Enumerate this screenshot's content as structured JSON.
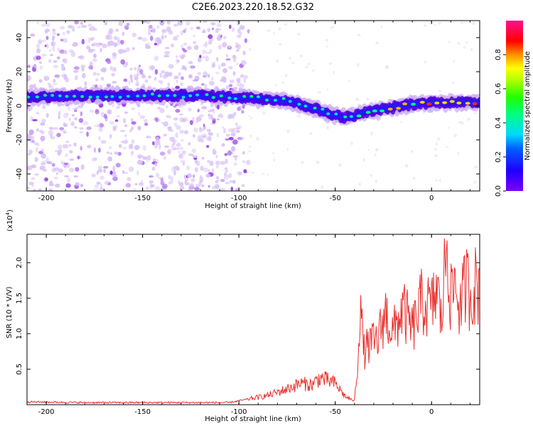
{
  "title": "C2E6.2023.220.18.52.G32",
  "chart_data": [
    {
      "type": "heatmap",
      "name": "spectrogram",
      "xlabel": "Height of straight line (km)",
      "ylabel": "Frequency (Hz)",
      "xlim": [
        -210,
        25
      ],
      "ylim": [
        -50,
        50
      ],
      "xticks": [
        -200,
        -150,
        -100,
        -50,
        0
      ],
      "xtick_labels": [
        "-200",
        "-150",
        "-100",
        "-50",
        "0"
      ],
      "yticks": [
        -40,
        -20,
        0,
        20,
        40
      ],
      "ytick_labels": [
        "-40",
        "-20",
        "0",
        "20",
        "40"
      ],
      "ridge": {
        "x": [
          -210,
          -180,
          -150,
          -120,
          -100,
          -85,
          -75,
          -65,
          -55,
          -45,
          -40,
          -35,
          -30,
          -20,
          -10,
          0,
          10,
          25
        ],
        "y": [
          5,
          6,
          6,
          6,
          5,
          4,
          3,
          0,
          -4,
          -7,
          -6,
          -4,
          -3,
          -1,
          1,
          2,
          2,
          2
        ]
      },
      "colorbar": {
        "label": "Normalized spectral amplitude",
        "range": [
          0,
          1
        ],
        "ticks": [
          0.0,
          0.2,
          0.4,
          0.6,
          0.8
        ],
        "tick_labels": [
          "0.0",
          "0.2",
          "0.4",
          "0.6",
          "0.8"
        ]
      }
    },
    {
      "type": "line",
      "name": "snr",
      "xlabel": "Height of straight line (km)",
      "ylabel": "SNR (10 * V/V)",
      "yscale_label_base": "(x10",
      "yscale_label_exp": "4",
      "yscale_label_end": ")",
      "xlim": [
        -210,
        25
      ],
      "ylim": [
        0,
        2.4
      ],
      "xticks": [
        -200,
        -150,
        -100,
        -50,
        0
      ],
      "xtick_labels": [
        "-200",
        "-150",
        "-100",
        "-50",
        "0"
      ],
      "yticks": [
        0.5,
        1.0,
        1.5,
        2.0
      ],
      "ytick_labels": [
        "0.5",
        "1.0",
        "1.5",
        "2.0"
      ],
      "color": "#e8312e",
      "series": {
        "x": [
          -210,
          -180,
          -150,
          -120,
          -105,
          -95,
          -85,
          -75,
          -68,
          -62,
          -58,
          -55,
          -50,
          -45,
          -40,
          -38,
          -37,
          -36,
          -35,
          -32,
          -28,
          -24,
          -20,
          -15,
          -10,
          -5,
          0,
          3,
          5,
          7,
          8,
          10,
          12,
          15,
          18,
          20,
          23,
          25
        ],
        "y": [
          0.04,
          0.03,
          0.03,
          0.03,
          0.03,
          0.08,
          0.13,
          0.22,
          0.3,
          0.28,
          0.38,
          0.35,
          0.3,
          0.12,
          0.05,
          0.7,
          1.6,
          1.0,
          0.75,
          0.85,
          0.9,
          1.3,
          1.0,
          1.35,
          1.05,
          1.45,
          1.35,
          1.65,
          1.15,
          1.95,
          2.35,
          1.45,
          1.75,
          1.35,
          1.75,
          1.55,
          1.7,
          1.65
        ]
      }
    }
  ]
}
